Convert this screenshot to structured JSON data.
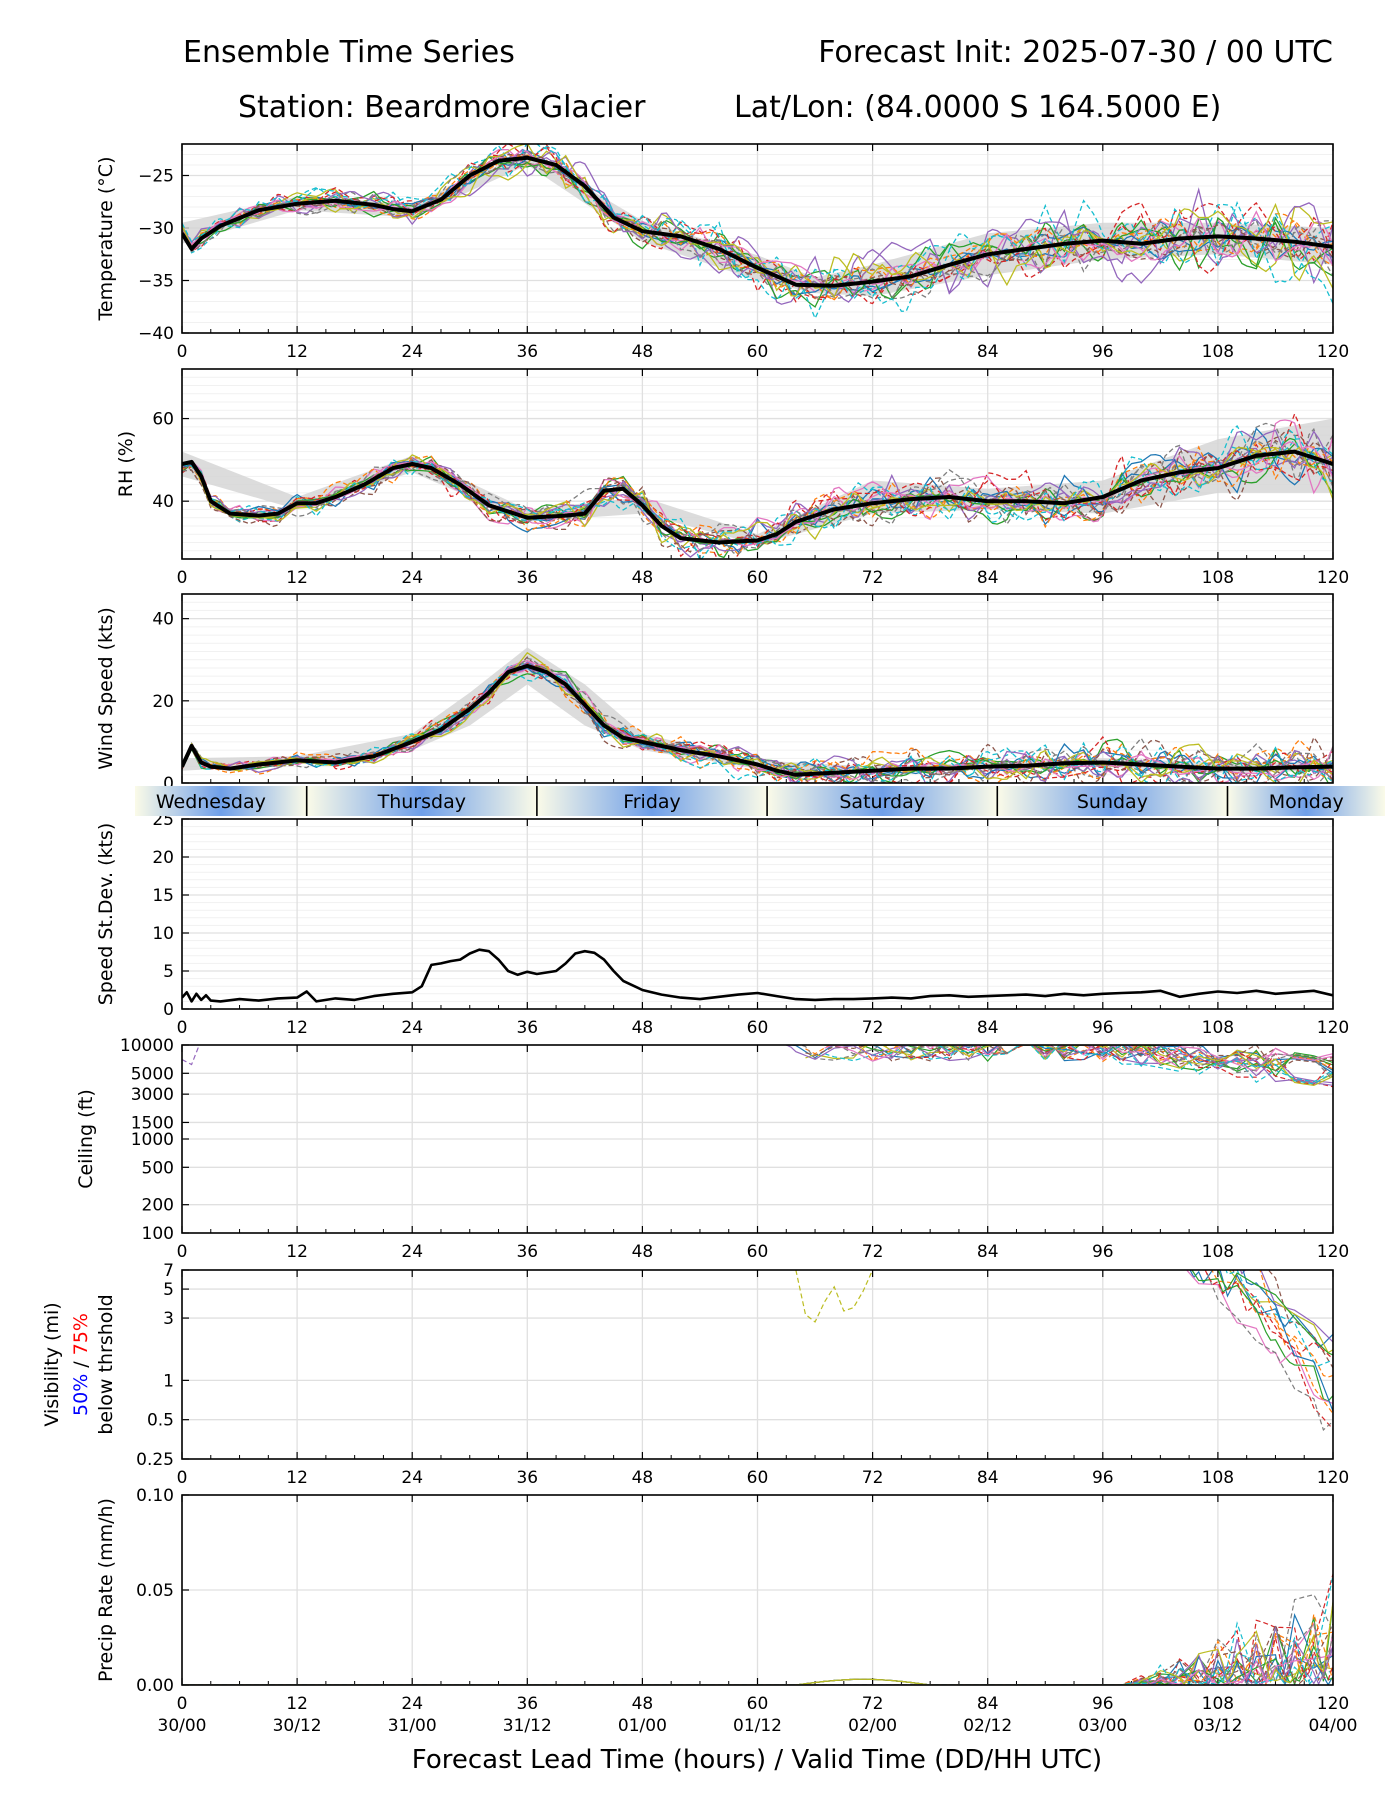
{
  "header": {
    "title_left": "Ensemble Time Series",
    "title_right": "Forecast Init: 2025-07-30 / 00 UTC",
    "station": "Station: Beardmore Glacier",
    "latlon": "Lat/Lon: (84.0000 S 164.5000 E)"
  },
  "x_axis": {
    "label": "Forecast Lead Time (hours) / Valid Time (DD/HH UTC)",
    "range": [
      0,
      120
    ],
    "ticks": [
      0,
      12,
      24,
      36,
      48,
      60,
      72,
      84,
      96,
      108,
      120
    ],
    "valid_time_labels": [
      "30/00",
      "30/12",
      "31/00",
      "31/12",
      "01/00",
      "01/12",
      "02/00",
      "02/12",
      "03/00",
      "03/12",
      "04/00"
    ]
  },
  "day_band": {
    "days": [
      "Wednesday",
      "Thursday",
      "Friday",
      "Saturday",
      "Sunday",
      "Monday"
    ],
    "boundaries_hours": [
      13,
      37,
      61,
      85,
      109
    ]
  },
  "colors": {
    "ensemble_palette": [
      "#1f77b4",
      "#ff7f0e",
      "#2ca02c",
      "#d62728",
      "#9467bd",
      "#8c564b",
      "#e377c2",
      "#7f7f7f",
      "#bcbd22",
      "#17becf"
    ],
    "mean_line": "#000000",
    "spread_fill": "#d3d3d3",
    "grid": "#e0e0e0",
    "day_band_blue": "#6f9fe8",
    "day_band_cream": "#fbfbe8",
    "vis_50": "#0000ff",
    "vis_75": "#ff0000"
  },
  "chart_data": [
    {
      "id": "temperature",
      "type": "line",
      "ylabel": "Temperature (°C)",
      "ylim": [
        -40,
        -22
      ],
      "yscale": "linear",
      "yticks": [
        -40,
        -35,
        -30,
        -25
      ],
      "ytick_labels": [
        "−40",
        "−35",
        "−30",
        "−25"
      ],
      "minor_grid_step": 1,
      "members": 20,
      "mean": {
        "x": [
          0,
          1,
          2,
          4,
          8,
          12,
          16,
          20,
          22,
          24,
          27,
          30,
          33,
          36,
          39,
          42,
          45,
          48,
          52,
          56,
          60,
          64,
          68,
          72,
          76,
          80,
          84,
          88,
          92,
          96,
          100,
          104,
          108,
          112,
          116,
          120
        ],
        "y": [
          -30.5,
          -32.0,
          -31.0,
          -29.8,
          -28.3,
          -27.7,
          -27.4,
          -27.8,
          -28.2,
          -28.4,
          -27.3,
          -25.0,
          -23.6,
          -23.3,
          -24.0,
          -26.0,
          -29.0,
          -30.3,
          -30.8,
          -32.0,
          -33.8,
          -35.4,
          -35.5,
          -35.1,
          -34.6,
          -33.5,
          -32.5,
          -32.0,
          -31.5,
          -31.2,
          -31.5,
          -31.0,
          -30.8,
          -31.0,
          -31.3,
          -31.8
        ]
      },
      "spread": {
        "x": [
          0,
          12,
          24,
          36,
          48,
          60,
          66,
          72,
          84,
          96,
          108,
          120
        ],
        "lo": [
          -31.5,
          -28.3,
          -29.0,
          -24.0,
          -31.3,
          -35.0,
          -36.2,
          -36.5,
          -34.5,
          -33.0,
          -32.5,
          -33.5
        ],
        "hi": [
          -29.5,
          -27.0,
          -27.7,
          -22.8,
          -29.3,
          -32.6,
          -34.7,
          -33.5,
          -30.5,
          -29.5,
          -29.5,
          -30.0
        ]
      }
    },
    {
      "id": "rh",
      "type": "line",
      "ylabel": "RH (%)",
      "ylim": [
        26,
        72
      ],
      "yscale": "linear",
      "yticks": [
        40,
        60
      ],
      "ytick_labels": [
        "40",
        "60"
      ],
      "minor_grid_step": 2,
      "members": 20,
      "mean": {
        "x": [
          0,
          1,
          2,
          3,
          5,
          8,
          10,
          12,
          14,
          16,
          19,
          22,
          24,
          26,
          29,
          32,
          36,
          40,
          42,
          44,
          46,
          48,
          50,
          52,
          56,
          60,
          62,
          64,
          68,
          72,
          76,
          80,
          84,
          88,
          92,
          96,
          100,
          104,
          108,
          112,
          116,
          120
        ],
        "y": [
          49,
          49.5,
          46,
          40,
          37,
          36.5,
          37,
          39.5,
          39.5,
          41,
          44,
          48,
          49,
          48,
          44,
          39,
          36,
          36.5,
          37,
          42.5,
          43,
          39,
          34,
          31,
          30,
          30.5,
          32,
          35,
          38,
          39.5,
          40.5,
          41,
          40,
          40,
          39.5,
          41,
          45,
          47,
          48,
          51,
          52,
          49
        ]
      },
      "spread": {
        "x": [
          0,
          12,
          24,
          36,
          48,
          60,
          72,
          84,
          96,
          108,
          120
        ],
        "lo": [
          46,
          38,
          47,
          35,
          37,
          29.5,
          37,
          38,
          37,
          42,
          42
        ],
        "hi": [
          52,
          41,
          51,
          38,
          41,
          32,
          45,
          43,
          45,
          55,
          60
        ]
      }
    },
    {
      "id": "wind",
      "type": "line",
      "ylabel": "Wind Speed (kts)",
      "ylim": [
        0,
        46
      ],
      "yscale": "linear",
      "yticks": [
        0,
        20,
        40
      ],
      "ytick_labels": [
        "0",
        "20",
        "40"
      ],
      "minor_grid_step": 2,
      "members": 20,
      "mean": {
        "x": [
          0,
          1,
          2,
          3,
          5,
          8,
          12,
          16,
          20,
          24,
          27,
          30,
          32,
          34,
          36,
          38,
          40,
          42,
          44,
          46,
          48,
          52,
          56,
          60,
          62,
          64,
          68,
          72,
          76,
          80,
          84,
          88,
          92,
          96,
          100,
          104,
          108,
          112,
          116,
          120
        ],
        "y": [
          4,
          9,
          5,
          4,
          3.5,
          4.5,
          5.5,
          5,
          6.5,
          10,
          13,
          18,
          22,
          27,
          28.5,
          27,
          24,
          19,
          14,
          11,
          10,
          8,
          6.5,
          4.5,
          3,
          2,
          2.5,
          3,
          3.5,
          3.5,
          4,
          4.2,
          4.8,
          5,
          4.5,
          4,
          3.5,
          3.5,
          3.8,
          4
        ]
      },
      "spread": {
        "x": [
          0,
          12,
          24,
          30,
          36,
          42,
          48,
          60,
          72,
          84,
          96,
          108,
          120
        ],
        "lo": [
          3,
          4.5,
          8,
          14,
          24,
          14,
          8,
          3.5,
          2.5,
          3.3,
          4,
          2.5,
          3
        ],
        "hi": [
          6,
          6.5,
          12,
          22,
          33,
          24,
          12,
          5.5,
          4,
          5,
          6,
          5,
          5
        ]
      }
    },
    {
      "id": "speed_stdev",
      "type": "line",
      "ylabel": "Speed St.Dev. (kts)",
      "ylim": [
        0,
        25
      ],
      "yscale": "linear",
      "yticks": [
        0,
        5,
        10,
        15,
        20,
        25
      ],
      "ytick_labels": [
        "0",
        "5",
        "10",
        "15",
        "20",
        "25"
      ],
      "minor_grid_step": 1,
      "members": 0,
      "mean": {
        "x": [
          0,
          0.5,
          1,
          1.5,
          2,
          2.5,
          3,
          4,
          6,
          8,
          10,
          12,
          13,
          14,
          16,
          18,
          20,
          22,
          24,
          25,
          26,
          27,
          28,
          29,
          30,
          31,
          32,
          33,
          34,
          35,
          36,
          37,
          38,
          39,
          40,
          41,
          42,
          43,
          44,
          45,
          46,
          48,
          50,
          52,
          54,
          56,
          58,
          60,
          62,
          64,
          66,
          68,
          70,
          72,
          74,
          76,
          78,
          80,
          82,
          84,
          86,
          88,
          90,
          92,
          94,
          96,
          98,
          100,
          102,
          104,
          106,
          108,
          110,
          112,
          114,
          116,
          118,
          120
        ],
        "y": [
          1.5,
          2.2,
          1.0,
          2.0,
          1.2,
          1.8,
          1.1,
          1.0,
          1.3,
          1.1,
          1.4,
          1.5,
          2.3,
          1.0,
          1.4,
          1.2,
          1.7,
          2.0,
          2.2,
          3.0,
          5.8,
          6.0,
          6.3,
          6.5,
          7.3,
          7.8,
          7.6,
          6.5,
          5.0,
          4.5,
          4.9,
          4.6,
          4.8,
          5.0,
          6.0,
          7.3,
          7.6,
          7.4,
          6.5,
          5.0,
          3.7,
          2.5,
          1.9,
          1.5,
          1.3,
          1.6,
          1.9,
          2.1,
          1.7,
          1.3,
          1.2,
          1.3,
          1.3,
          1.4,
          1.5,
          1.4,
          1.7,
          1.8,
          1.6,
          1.7,
          1.8,
          1.9,
          1.7,
          2.0,
          1.8,
          2.0,
          2.1,
          2.2,
          2.4,
          1.6,
          2.0,
          2.3,
          2.1,
          2.4,
          2.0,
          2.2,
          2.4,
          1.8
        ]
      }
    },
    {
      "id": "ceiling",
      "type": "line",
      "ylabel": "Ceiling (ft)",
      "ylim": [
        100,
        10000
      ],
      "yscale": "log",
      "yticks": [
        100,
        200,
        500,
        1000,
        1500,
        3000,
        5000,
        10000
      ],
      "ytick_labels": [
        "100",
        "200",
        "500",
        "1000",
        "1500",
        "3000",
        "5000",
        "10000"
      ],
      "members": 20
    },
    {
      "id": "visibility",
      "type": "line",
      "ylabel": "Visibility (mi)",
      "ylabel_mid": [
        "50%",
        " / ",
        "75%"
      ],
      "ylabel_third": "below thrshold",
      "ylim": [
        0.25,
        7
      ],
      "yscale": "log",
      "yticks": [
        0.25,
        0.5,
        1,
        3,
        5,
        7
      ],
      "ytick_labels": [
        "0.25",
        "0.5",
        "1",
        "3",
        "5",
        "7"
      ],
      "members": 20
    },
    {
      "id": "precip",
      "type": "line",
      "ylabel": "Precip Rate (mm/h)",
      "ylim": [
        0,
        0.1
      ],
      "yscale": "linear",
      "yticks": [
        0,
        0.05,
        0.1
      ],
      "ytick_labels": [
        "0.00",
        "0.05",
        "0.10"
      ],
      "members": 20
    }
  ]
}
